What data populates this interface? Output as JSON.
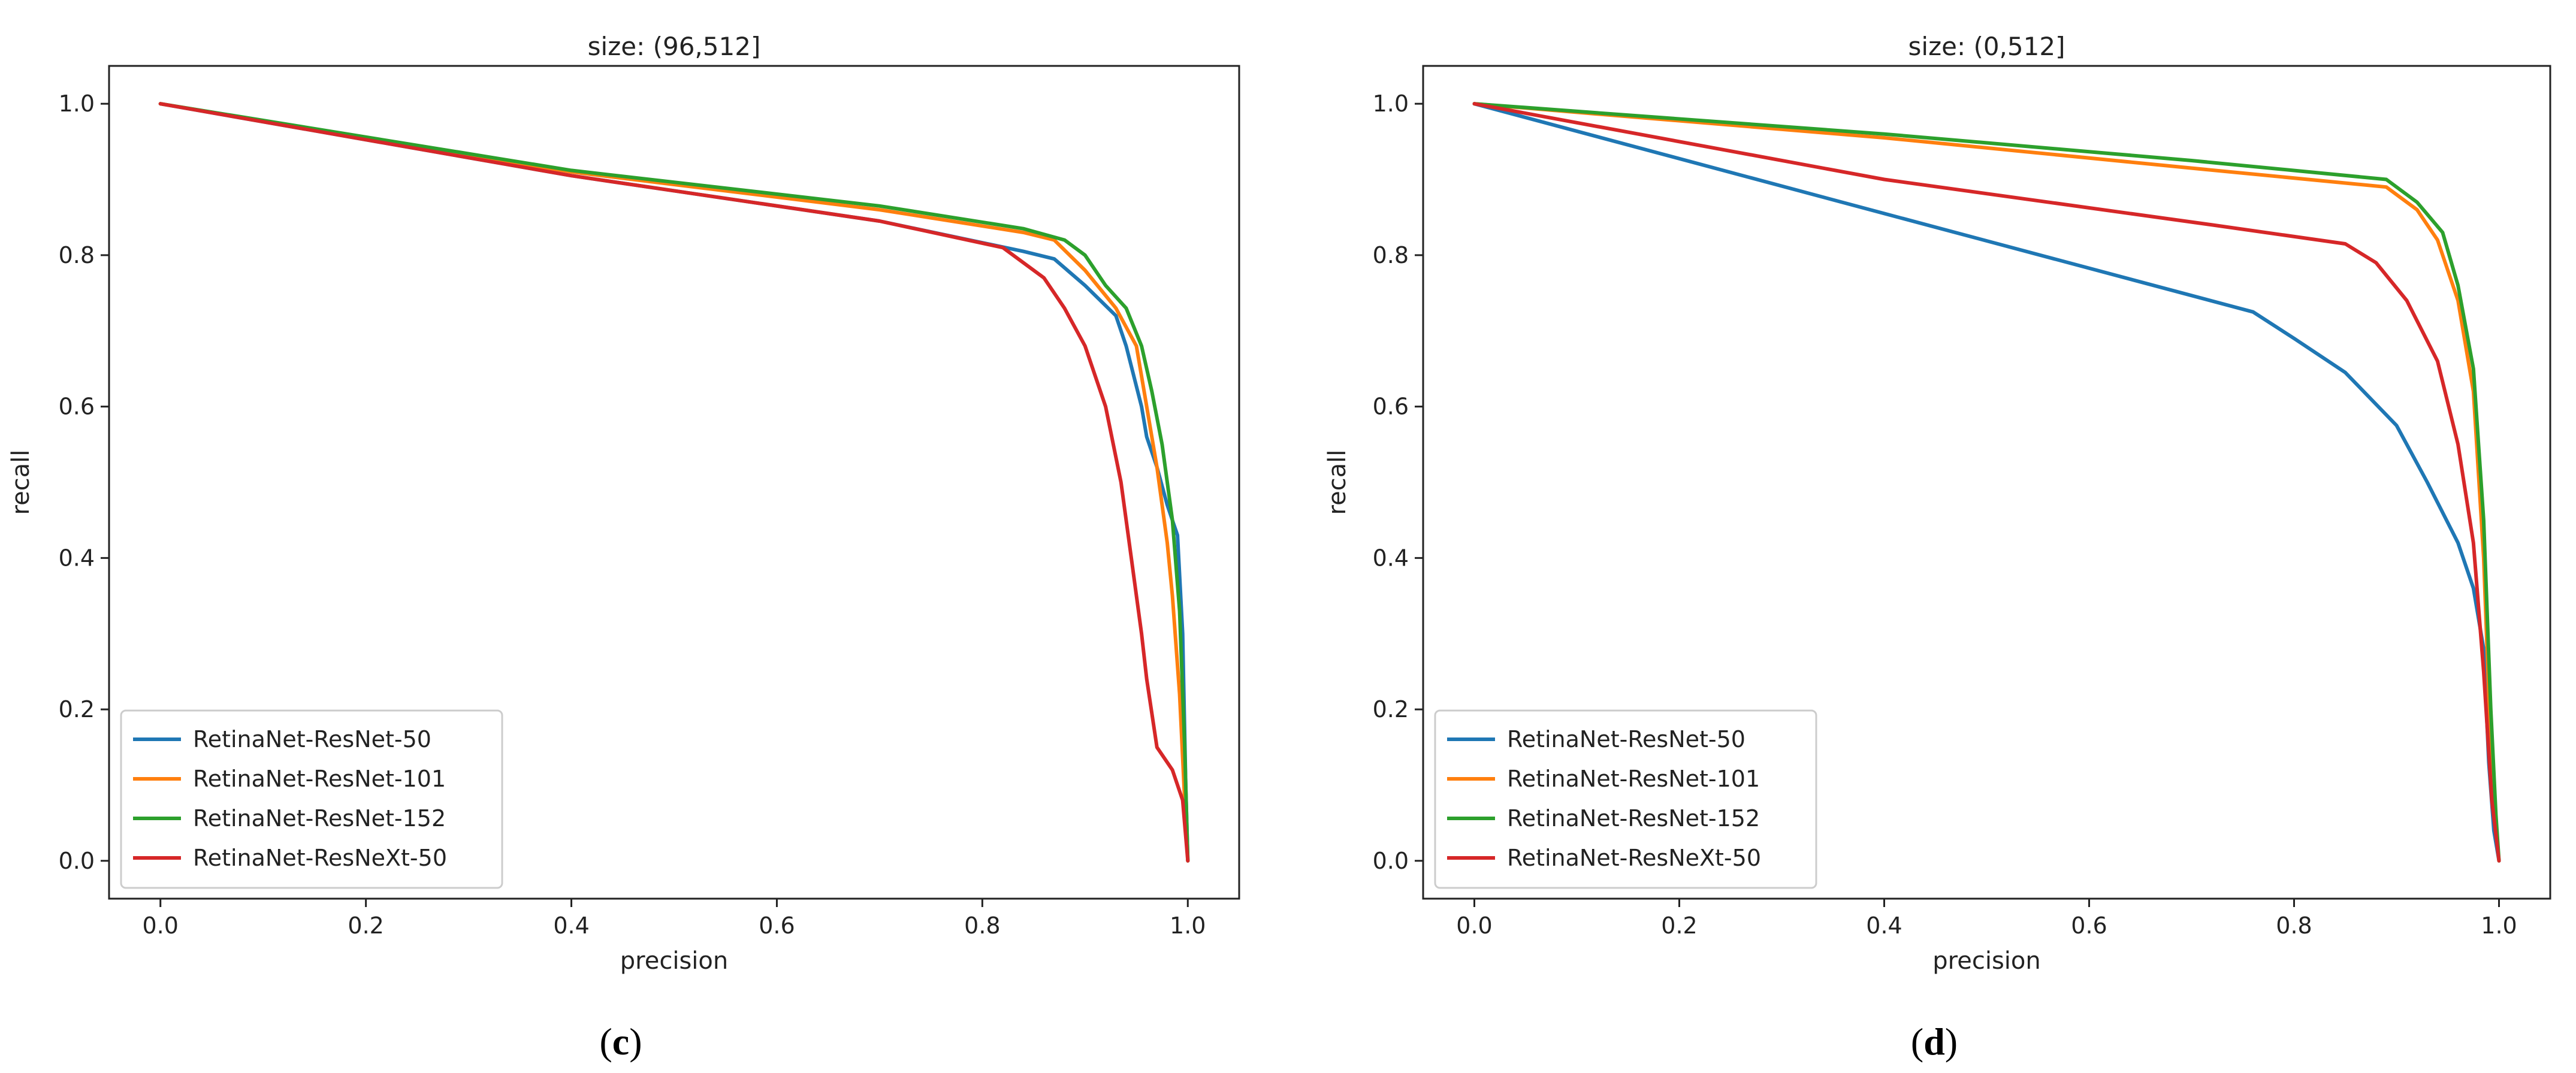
{
  "chart_data": [
    {
      "type": "line",
      "title": "size: (96,512]",
      "xlabel": "precision",
      "ylabel": "recall",
      "xlim": [
        -0.05,
        1.05
      ],
      "ylim": [
        -0.05,
        1.05
      ],
      "xticks": [
        0.0,
        0.2,
        0.4,
        0.6,
        0.8,
        1.0
      ],
      "xtick_labels": [
        "0.0",
        "0.2",
        "0.4",
        "0.6",
        "0.8",
        "1.0"
      ],
      "yticks": [
        0.0,
        0.2,
        0.4,
        0.6,
        0.8,
        1.0
      ],
      "ytick_labels": [
        "0.0",
        "0.2",
        "0.4",
        "0.6",
        "0.8",
        "1.0"
      ],
      "grid": false,
      "legend_position": "lower-left",
      "caption": "(c)",
      "caption_letter": "c",
      "series": [
        {
          "name": "RetinaNet-ResNet-50",
          "color": "#1f77b4",
          "points": [
            [
              0.0,
              1.0
            ],
            [
              0.4,
              0.905
            ],
            [
              0.7,
              0.845
            ],
            [
              0.84,
              0.805
            ],
            [
              0.87,
              0.795
            ],
            [
              0.9,
              0.76
            ],
            [
              0.93,
              0.72
            ],
            [
              0.94,
              0.68
            ],
            [
              0.955,
              0.6
            ],
            [
              0.96,
              0.56
            ],
            [
              0.97,
              0.52
            ],
            [
              0.98,
              0.47
            ],
            [
              0.99,
              0.43
            ],
            [
              0.995,
              0.3
            ],
            [
              0.998,
              0.1
            ],
            [
              1.0,
              0.0
            ]
          ]
        },
        {
          "name": "RetinaNet-ResNet-101",
          "color": "#ff7f0e",
          "points": [
            [
              0.0,
              1.0
            ],
            [
              0.4,
              0.91
            ],
            [
              0.7,
              0.86
            ],
            [
              0.84,
              0.83
            ],
            [
              0.87,
              0.82
            ],
            [
              0.9,
              0.78
            ],
            [
              0.93,
              0.73
            ],
            [
              0.95,
              0.68
            ],
            [
              0.96,
              0.6
            ],
            [
              0.97,
              0.52
            ],
            [
              0.98,
              0.42
            ],
            [
              0.985,
              0.35
            ],
            [
              0.992,
              0.22
            ],
            [
              0.997,
              0.08
            ],
            [
              1.0,
              0.0
            ]
          ]
        },
        {
          "name": "RetinaNet-ResNet-152",
          "color": "#2ca02c",
          "points": [
            [
              0.0,
              1.0
            ],
            [
              0.4,
              0.912
            ],
            [
              0.7,
              0.865
            ],
            [
              0.84,
              0.835
            ],
            [
              0.88,
              0.82
            ],
            [
              0.9,
              0.8
            ],
            [
              0.92,
              0.76
            ],
            [
              0.94,
              0.73
            ],
            [
              0.955,
              0.68
            ],
            [
              0.965,
              0.62
            ],
            [
              0.975,
              0.55
            ],
            [
              0.985,
              0.45
            ],
            [
              0.992,
              0.33
            ],
            [
              0.997,
              0.15
            ],
            [
              1.0,
              0.0
            ]
          ]
        },
        {
          "name": "RetinaNet-ResNeXt-50",
          "color": "#d62728",
          "points": [
            [
              0.0,
              1.0
            ],
            [
              0.4,
              0.905
            ],
            [
              0.7,
              0.845
            ],
            [
              0.82,
              0.81
            ],
            [
              0.86,
              0.77
            ],
            [
              0.88,
              0.73
            ],
            [
              0.9,
              0.68
            ],
            [
              0.92,
              0.6
            ],
            [
              0.935,
              0.5
            ],
            [
              0.945,
              0.4
            ],
            [
              0.955,
              0.3
            ],
            [
              0.96,
              0.24
            ],
            [
              0.97,
              0.15
            ],
            [
              0.985,
              0.12
            ],
            [
              0.995,
              0.08
            ],
            [
              1.0,
              0.0
            ]
          ]
        }
      ]
    },
    {
      "type": "line",
      "title": "size: (0,512]",
      "xlabel": "precision",
      "ylabel": "recall",
      "xlim": [
        -0.05,
        1.05
      ],
      "ylim": [
        -0.05,
        1.05
      ],
      "xticks": [
        0.0,
        0.2,
        0.4,
        0.6,
        0.8,
        1.0
      ],
      "xtick_labels": [
        "0.0",
        "0.2",
        "0.4",
        "0.6",
        "0.8",
        "1.0"
      ],
      "yticks": [
        0.0,
        0.2,
        0.4,
        0.6,
        0.8,
        1.0
      ],
      "ytick_labels": [
        "0.0",
        "0.2",
        "0.4",
        "0.6",
        "0.8",
        "1.0"
      ],
      "grid": false,
      "legend_position": "lower-left",
      "caption": "(d)",
      "caption_letter": "d",
      "series": [
        {
          "name": "RetinaNet-ResNet-50",
          "color": "#1f77b4",
          "points": [
            [
              0.0,
              1.0
            ],
            [
              0.4,
              0.855
            ],
            [
              0.76,
              0.725
            ],
            [
              0.8,
              0.69
            ],
            [
              0.85,
              0.645
            ],
            [
              0.9,
              0.575
            ],
            [
              0.93,
              0.5
            ],
            [
              0.96,
              0.42
            ],
            [
              0.975,
              0.36
            ],
            [
              0.985,
              0.28
            ],
            [
              0.99,
              0.13
            ],
            [
              0.995,
              0.04
            ],
            [
              1.0,
              0.0
            ]
          ]
        },
        {
          "name": "RetinaNet-ResNet-101",
          "color": "#ff7f0e",
          "points": [
            [
              0.0,
              1.0
            ],
            [
              0.4,
              0.955
            ],
            [
              0.7,
              0.915
            ],
            [
              0.89,
              0.89
            ],
            [
              0.92,
              0.86
            ],
            [
              0.94,
              0.82
            ],
            [
              0.96,
              0.74
            ],
            [
              0.975,
              0.62
            ],
            [
              0.985,
              0.4
            ],
            [
              0.992,
              0.15
            ],
            [
              0.997,
              0.04
            ],
            [
              1.0,
              0.0
            ]
          ]
        },
        {
          "name": "RetinaNet-ResNet-152",
          "color": "#2ca02c",
          "points": [
            [
              0.0,
              1.0
            ],
            [
              0.4,
              0.96
            ],
            [
              0.7,
              0.925
            ],
            [
              0.89,
              0.9
            ],
            [
              0.92,
              0.87
            ],
            [
              0.945,
              0.83
            ],
            [
              0.96,
              0.76
            ],
            [
              0.975,
              0.65
            ],
            [
              0.985,
              0.45
            ],
            [
              0.992,
              0.2
            ],
            [
              0.997,
              0.06
            ],
            [
              1.0,
              0.0
            ]
          ]
        },
        {
          "name": "RetinaNet-ResNeXt-50",
          "color": "#d62728",
          "points": [
            [
              0.0,
              1.0
            ],
            [
              0.4,
              0.9
            ],
            [
              0.72,
              0.84
            ],
            [
              0.85,
              0.815
            ],
            [
              0.88,
              0.79
            ],
            [
              0.91,
              0.74
            ],
            [
              0.94,
              0.66
            ],
            [
              0.96,
              0.55
            ],
            [
              0.975,
              0.42
            ],
            [
              0.985,
              0.25
            ],
            [
              0.993,
              0.08
            ],
            [
              1.0,
              0.0
            ]
          ]
        }
      ]
    }
  ]
}
